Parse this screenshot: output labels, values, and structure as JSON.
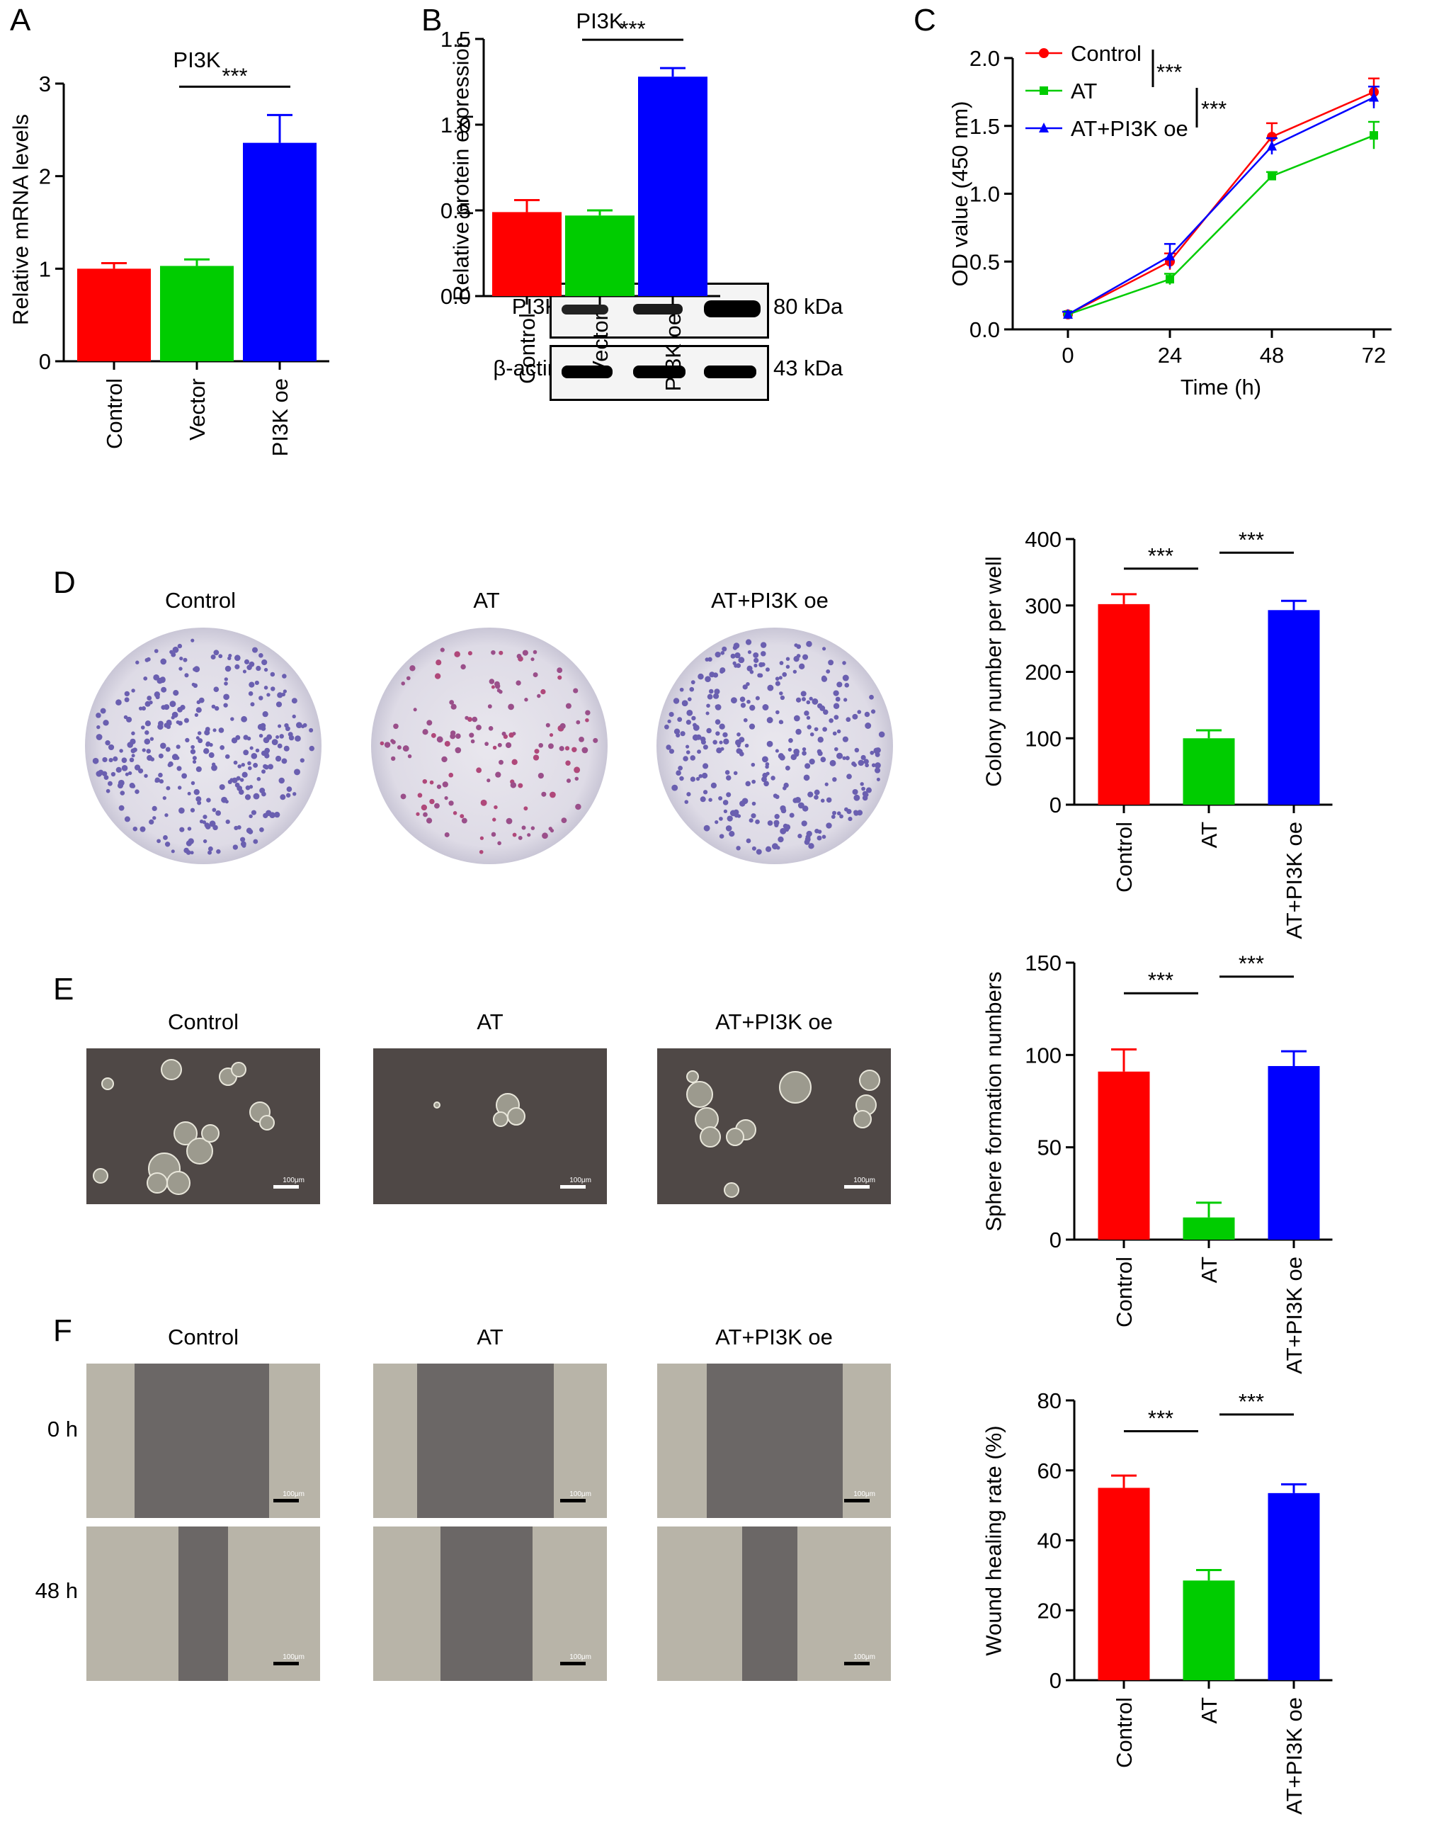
{
  "colors": {
    "control": "#ff0000",
    "at": "#00cc00",
    "oe": "#0000ff",
    "black": "#000000"
  },
  "panels": {
    "a": "A",
    "b": "B",
    "c": "C",
    "d": "D",
    "e": "E",
    "f": "F"
  },
  "images": {
    "headers": [
      "Control",
      "AT",
      "AT+PI3K oe"
    ],
    "scale_text": "100μm",
    "rows": [
      "0 h",
      "48 h"
    ]
  },
  "blot": {
    "rows": [
      {
        "label": "PI3K",
        "kda": "80 kDa"
      },
      {
        "label": "β-actin",
        "kda": "43 kDa"
      }
    ]
  },
  "chart_data": [
    {
      "id": "A",
      "type": "bar",
      "title": "PI3K",
      "ylabel": "Relative mRNA levels",
      "xlabel": "",
      "categories": [
        "Control",
        "Vector",
        "PI3K oe"
      ],
      "values": [
        1.0,
        1.03,
        2.36
      ],
      "errors": [
        0.06,
        0.07,
        0.3
      ],
      "ylim": [
        0,
        3
      ],
      "yticks": [
        "0",
        "1",
        "2",
        "3"
      ],
      "sig": "***"
    },
    {
      "id": "B",
      "type": "bar",
      "title": "PI3K",
      "ylabel": "Relative protein expression",
      "xlabel": "",
      "categories": [
        "Control",
        "Vector",
        "PI3K oe"
      ],
      "values": [
        0.49,
        0.47,
        1.28
      ],
      "errors": [
        0.07,
        0.03,
        0.05
      ],
      "ylim": [
        0,
        1.5
      ],
      "yticks": [
        "0.0",
        "0.5",
        "1.0",
        "1.5"
      ],
      "sig": "***"
    },
    {
      "id": "C",
      "type": "line",
      "xlabel": "Time (h)",
      "ylabel": "OD value (450 nm)",
      "x": [
        0,
        24,
        48,
        72
      ],
      "xticks": [
        "0",
        "24",
        "48",
        "72"
      ],
      "ylim": [
        0,
        2.0
      ],
      "yticks": [
        "0.0",
        "0.5",
        "1.0",
        "1.5",
        "2.0"
      ],
      "legend": "top-left",
      "series": [
        {
          "name": "Control",
          "values": [
            0.11,
            0.5,
            1.42,
            1.75
          ],
          "errors": [
            0.02,
            0.06,
            0.1,
            0.1
          ]
        },
        {
          "name": "AT",
          "values": [
            0.11,
            0.37,
            1.13,
            1.43
          ],
          "errors": [
            0.02,
            0.04,
            0.03,
            0.1
          ]
        },
        {
          "name": "AT+PI3K oe",
          "values": [
            0.11,
            0.54,
            1.35,
            1.71
          ],
          "errors": [
            0.02,
            0.09,
            0.06,
            0.08
          ]
        }
      ],
      "sig": [
        "***",
        "***"
      ]
    },
    {
      "id": "D",
      "type": "bar",
      "ylabel": "Colony number per well",
      "xlabel": "",
      "categories": [
        "Control",
        "AT",
        "AT+PI3K oe"
      ],
      "values": [
        302,
        100,
        293
      ],
      "errors": [
        15,
        12,
        14
      ],
      "ylim": [
        0,
        400
      ],
      "yticks": [
        "0",
        "100",
        "200",
        "300",
        "400"
      ],
      "sig": [
        "***",
        "***"
      ]
    },
    {
      "id": "E",
      "type": "bar",
      "ylabel": "Sphere formation numbers",
      "xlabel": "",
      "categories": [
        "Control",
        "AT",
        "AT+PI3K oe"
      ],
      "values": [
        91,
        12,
        94
      ],
      "errors": [
        12,
        8,
        8
      ],
      "ylim": [
        0,
        150
      ],
      "yticks": [
        "0",
        "50",
        "100",
        "150"
      ],
      "sig": [
        "***",
        "***"
      ]
    },
    {
      "id": "F",
      "type": "bar",
      "ylabel": "Wound healing rate (%)",
      "xlabel": "",
      "categories": [
        "Control",
        "AT",
        "AT+PI3K oe"
      ],
      "values": [
        55,
        28.5,
        53.5
      ],
      "errors": [
        3.5,
        3,
        2.5
      ],
      "ylim": [
        0,
        80
      ],
      "yticks": [
        "0",
        "20",
        "40",
        "60",
        "80"
      ],
      "sig": [
        "***",
        "***"
      ]
    }
  ]
}
